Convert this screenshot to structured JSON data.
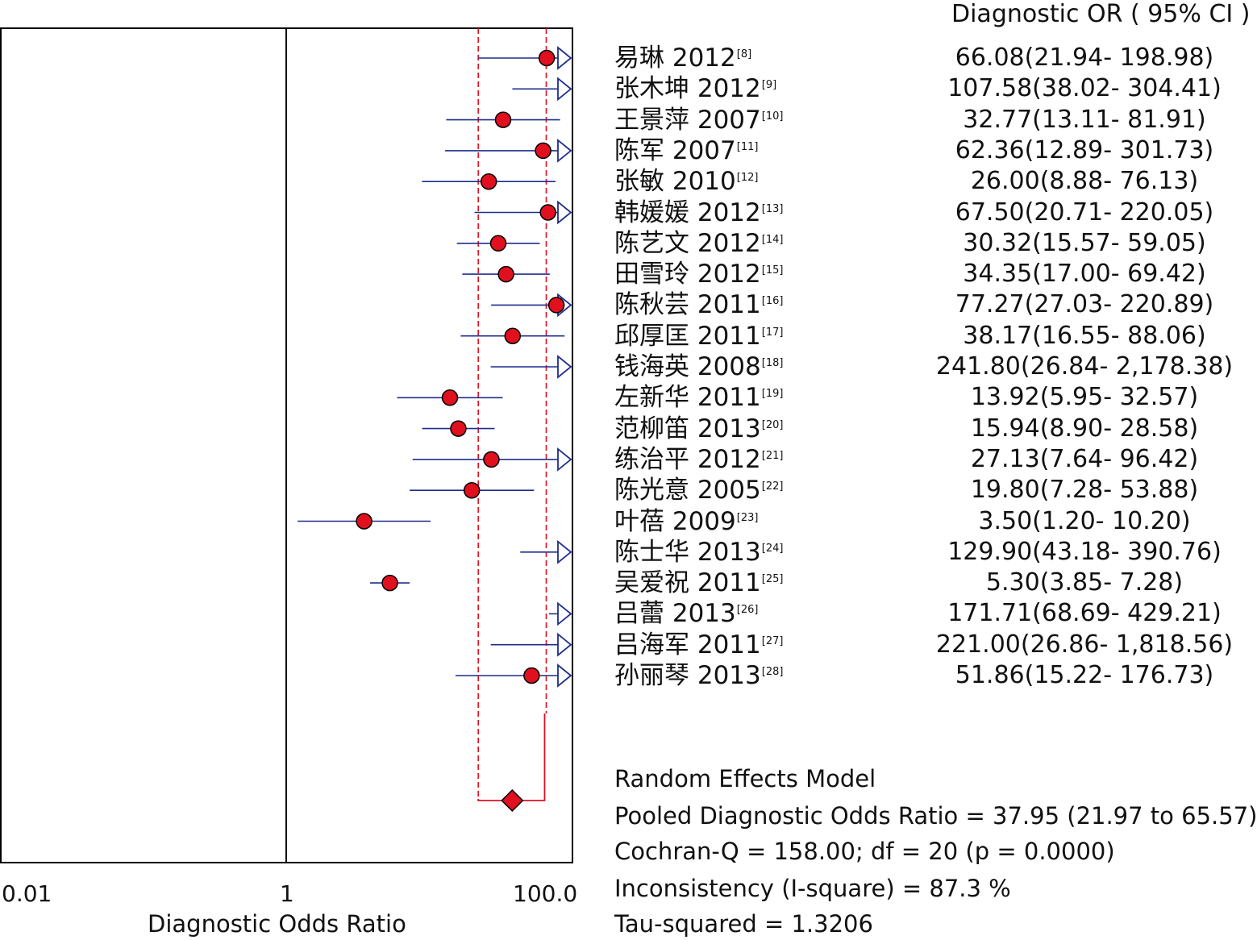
{
  "chart_data": {
    "type": "forest",
    "header": "Diagnostic OR ( 95% CI )",
    "xlabel": "Diagnostic Odds Ratio",
    "x_ticks": [
      "0.01",
      "1",
      "100.0"
    ],
    "x_scale": "log",
    "xlim": [
      0.01,
      100
    ],
    "studies": [
      {
        "name": "易琳 2012",
        "ref": "[8]",
        "or": 66.08,
        "lo": 21.94,
        "hi": 198.98,
        "ci_text": "66.08(21.94- 198.98)"
      },
      {
        "name": "张木坤 2012",
        "ref": "[9]",
        "or": 107.58,
        "lo": 38.02,
        "hi": 304.41,
        "ci_text": "107.58(38.02- 304.41)"
      },
      {
        "name": "王景萍 2007",
        "ref": "[10]",
        "or": 32.77,
        "lo": 13.11,
        "hi": 81.91,
        "ci_text": "32.77(13.11- 81.91)"
      },
      {
        "name": "陈军 2007",
        "ref": "[11]",
        "or": 62.36,
        "lo": 12.89,
        "hi": 301.73,
        "ci_text": "62.36(12.89- 301.73)"
      },
      {
        "name": "张敏 2010",
        "ref": "[12]",
        "or": 26.0,
        "lo": 8.88,
        "hi": 76.13,
        "ci_text": "26.00(8.88- 76.13)"
      },
      {
        "name": "韩媛媛 2012",
        "ref": "[13]",
        "or": 67.5,
        "lo": 20.71,
        "hi": 220.05,
        "ci_text": "67.50(20.71- 220.05)"
      },
      {
        "name": "陈艺文 2012",
        "ref": "[14]",
        "or": 30.32,
        "lo": 15.57,
        "hi": 59.05,
        "ci_text": "30.32(15.57- 59.05)"
      },
      {
        "name": "田雪玲 2012",
        "ref": "[15]",
        "or": 34.35,
        "lo": 17.0,
        "hi": 69.42,
        "ci_text": "34.35(17.00- 69.42)"
      },
      {
        "name": "陈秋芸 2011",
        "ref": "[16]",
        "or": 77.27,
        "lo": 27.03,
        "hi": 220.89,
        "ci_text": "77.27(27.03- 220.89)"
      },
      {
        "name": "邱厚匡 2011",
        "ref": "[17]",
        "or": 38.17,
        "lo": 16.55,
        "hi": 88.06,
        "ci_text": "38.17(16.55- 88.06)"
      },
      {
        "name": "钱海英 2008",
        "ref": "[18]",
        "or": 241.8,
        "lo": 26.84,
        "hi": 2178.38,
        "ci_text": "241.80(26.84- 2,178.38)"
      },
      {
        "name": "左新华 2011",
        "ref": "[19]",
        "or": 13.92,
        "lo": 5.95,
        "hi": 32.57,
        "ci_text": "13.92(5.95- 32.57)"
      },
      {
        "name": "范柳笛 2013",
        "ref": "[20]",
        "or": 15.94,
        "lo": 8.9,
        "hi": 28.58,
        "ci_text": "15.94(8.90- 28.58)"
      },
      {
        "name": "练治平 2012",
        "ref": "[21]",
        "or": 27.13,
        "lo": 7.64,
        "hi": 96.42,
        "ci_text": "27.13(7.64- 96.42)"
      },
      {
        "name": "陈光意 2005",
        "ref": "[22]",
        "or": 19.8,
        "lo": 7.28,
        "hi": 53.88,
        "ci_text": "19.80(7.28- 53.88)"
      },
      {
        "name": "叶蓓 2009",
        "ref": "[23]",
        "or": 3.5,
        "lo": 1.2,
        "hi": 10.2,
        "ci_text": "3.50(1.20- 10.20)"
      },
      {
        "name": "陈士华 2013",
        "ref": "[24]",
        "or": 129.9,
        "lo": 43.18,
        "hi": 390.76,
        "ci_text": "129.90(43.18- 390.76)"
      },
      {
        "name": "吴爱祝 2011",
        "ref": "[25]",
        "or": 5.3,
        "lo": 3.85,
        "hi": 7.28,
        "ci_text": "5.30(3.85- 7.28)"
      },
      {
        "name": "吕蕾 2013",
        "ref": "[26]",
        "or": 171.71,
        "lo": 68.69,
        "hi": 429.21,
        "ci_text": "171.71(68.69- 429.21)"
      },
      {
        "name": "吕海军 2011",
        "ref": "[27]",
        "or": 221.0,
        "lo": 26.86,
        "hi": 1818.56,
        "ci_text": "221.00(26.86- 1,818.56)"
      },
      {
        "name": "孙丽琴 2013",
        "ref": "[28]",
        "or": 51.86,
        "lo": 15.22,
        "hi": 176.73,
        "ci_text": "51.86(15.22- 176.73)"
      }
    ],
    "pooled": {
      "or": 37.95,
      "lo": 21.97,
      "hi": 65.57
    },
    "summary_lines": [
      "Random Effects Model",
      "Pooled Diagnostic Odds Ratio = 37.95 (21.97 to 65.57)",
      "Cochran-Q = 158.00; df =  20 (p = 0.0000)",
      "Inconsistency (I-square) = 87.3 %",
      "Tau-squared = 1.3206"
    ],
    "colors": {
      "line": "#1f2d8c",
      "marker": "#e0101e",
      "reference": "#e0101e",
      "axis": "#000000"
    }
  }
}
